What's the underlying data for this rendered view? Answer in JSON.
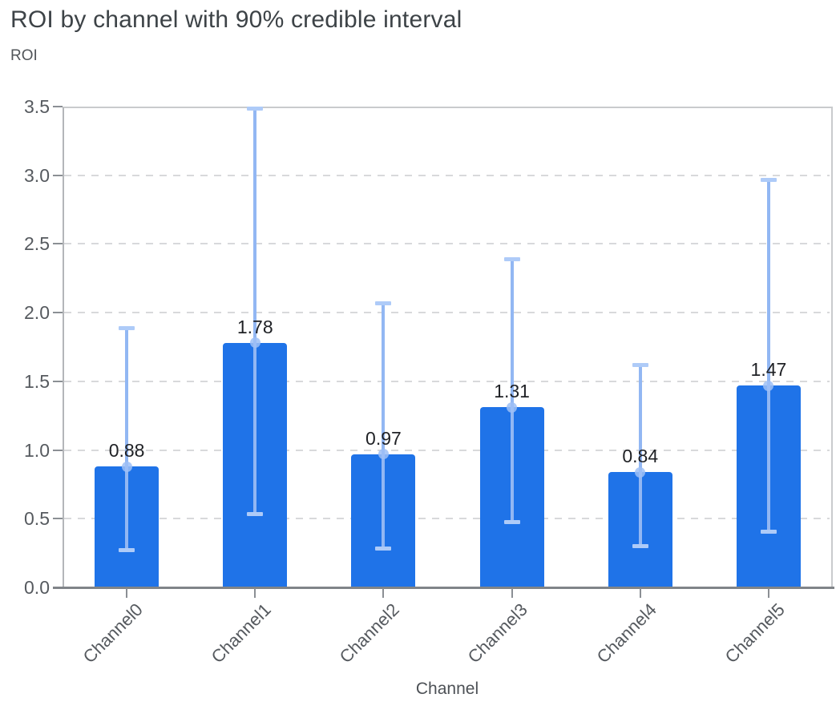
{
  "title": "ROI by channel with 90% credible interval",
  "y_axis": {
    "title": "ROI",
    "min": 0,
    "max": 3.5,
    "tick_step": 0.5
  },
  "x_axis": {
    "title": "Channel"
  },
  "chart_data": {
    "type": "bar",
    "title": "ROI by channel with 90% credible interval",
    "xlabel": "Channel",
    "ylabel": "ROI",
    "categories": [
      "Channel0",
      "Channel1",
      "Channel2",
      "Channel3",
      "Channel4",
      "Channel5"
    ],
    "series": [
      {
        "name": "ROI",
        "values": [
          0.88,
          1.78,
          0.97,
          1.31,
          0.84,
          1.47
        ]
      }
    ],
    "bar_labels": [
      "0.88",
      "1.78",
      "0.97",
      "1.31",
      "0.84",
      "1.47"
    ],
    "error_bars": {
      "label": "90% credible interval",
      "low": [
        0.27,
        0.53,
        0.28,
        0.47,
        0.3,
        0.4
      ],
      "high": [
        1.89,
        3.49,
        2.07,
        2.39,
        1.62,
        2.97
      ]
    },
    "ylim": [
      0,
      3.5
    ],
    "y_ticks": [
      0.0,
      0.5,
      1.0,
      1.5,
      2.0,
      2.5,
      3.0,
      3.5
    ],
    "grid": "horizontal-dashed",
    "legend": "none"
  },
  "colors": {
    "bar": "#1f73e8",
    "error_line": "#92b7f3",
    "error_cap": "#aecbf8",
    "error_marker": "#9dbff6",
    "title_text": "#3d4347",
    "axis_text": "#565a5f",
    "value_label_text": "#1f2125",
    "gridline": "#d8d9db",
    "plot_border": "#c9cbcd",
    "x_axis_line": "#808488",
    "tick_mark": "#8b8f94"
  }
}
